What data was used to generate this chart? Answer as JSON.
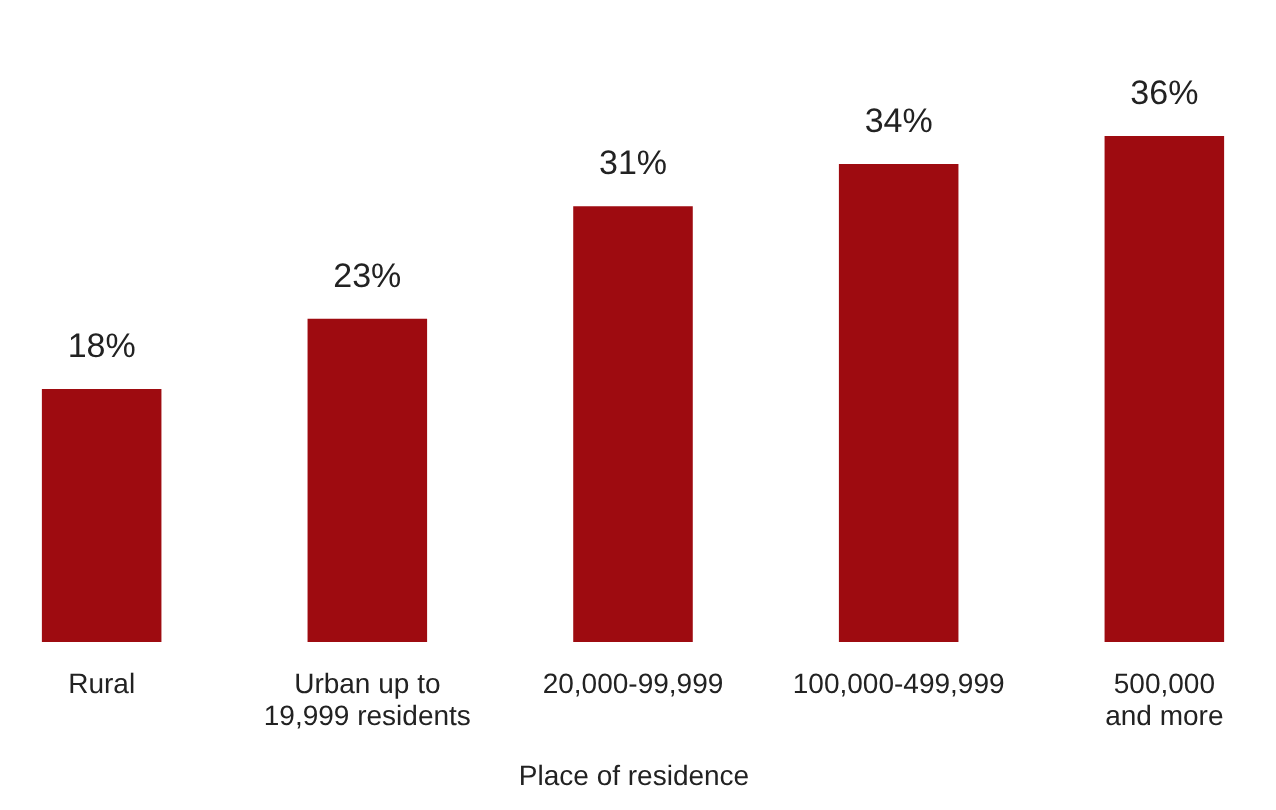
{
  "chart_data": {
    "type": "bar",
    "xlabel": "Place of residence",
    "categories": [
      "Rural",
      "Urban up to 19,999 residents",
      "20,000-99,999",
      "100,000-499,999",
      "500,000 and more"
    ],
    "values": [
      18,
      23,
      31,
      34,
      36
    ],
    "value_labels": [
      "18%",
      "23%",
      "31%",
      "34%",
      "36%"
    ],
    "color": "#9e0b10"
  }
}
